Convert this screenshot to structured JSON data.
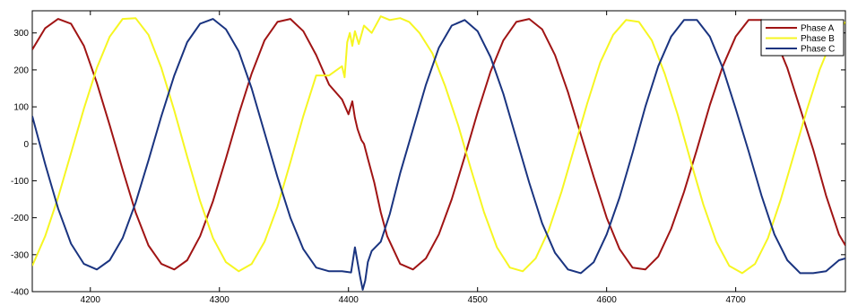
{
  "chart_data": {
    "type": "line",
    "title": "",
    "xlabel": "",
    "ylabel": "",
    "xlim": [
      4155,
      4785
    ],
    "ylim": [
      -400,
      360
    ],
    "x_ticks": [
      4200,
      4300,
      4400,
      4500,
      4600,
      4700
    ],
    "y_ticks": [
      300,
      200,
      100,
      0,
      -100,
      -200,
      -300,
      -400
    ],
    "grid": false,
    "legend_position": "top-right",
    "series": [
      {
        "name": "Phase A",
        "color": "#a01414",
        "x": [
          4155,
          4165,
          4175,
          4185,
          4195,
          4205,
          4215,
          4225,
          4235,
          4245,
          4255,
          4265,
          4275,
          4285,
          4295,
          4305,
          4315,
          4325,
          4335,
          4345,
          4355,
          4365,
          4375,
          4385,
          4395,
          4400,
          4403,
          4405,
          4407,
          4410,
          4412,
          4415,
          4420,
          4425,
          4430,
          4440,
          4450,
          4460,
          4470,
          4480,
          4490,
          4500,
          4510,
          4520,
          4530,
          4540,
          4550,
          4560,
          4570,
          4580,
          4590,
          4600,
          4610,
          4620,
          4630,
          4640,
          4650,
          4660,
          4670,
          4680,
          4690,
          4700,
          4710,
          4720,
          4730,
          4740,
          4750,
          4760,
          4770,
          4780,
          4785
        ],
        "y": [
          255,
          313,
          338,
          325,
          265,
          165,
          50,
          -70,
          -185,
          -275,
          -325,
          -340,
          -315,
          -250,
          -155,
          -40,
          80,
          190,
          280,
          330,
          338,
          305,
          240,
          160,
          120,
          80,
          115,
          70,
          40,
          10,
          0,
          -40,
          -105,
          -185,
          -250,
          -325,
          -340,
          -310,
          -245,
          -150,
          -35,
          85,
          195,
          280,
          330,
          338,
          310,
          240,
          140,
          25,
          -90,
          -200,
          -285,
          -335,
          -340,
          -305,
          -230,
          -130,
          -15,
          105,
          210,
          290,
          335,
          335,
          290,
          205,
          95,
          -15,
          -140,
          -245,
          -275
        ]
      },
      {
        "name": "Phase B",
        "color": "#f6f622",
        "x": [
          4155,
          4165,
          4175,
          4185,
          4195,
          4205,
          4215,
          4225,
          4235,
          4245,
          4255,
          4265,
          4275,
          4285,
          4295,
          4305,
          4315,
          4325,
          4335,
          4345,
          4355,
          4365,
          4375,
          4385,
          4395,
          4397,
          4399,
          4401,
          4403,
          4405,
          4408,
          4412,
          4418,
          4425,
          4432,
          4440,
          4447,
          4455,
          4465,
          4475,
          4485,
          4495,
          4505,
          4515,
          4525,
          4535,
          4545,
          4555,
          4565,
          4575,
          4585,
          4595,
          4605,
          4615,
          4625,
          4635,
          4645,
          4655,
          4665,
          4675,
          4685,
          4695,
          4705,
          4715,
          4725,
          4735,
          4745,
          4755,
          4765,
          4775,
          4785
        ],
        "y": [
          -330,
          -250,
          -145,
          -25,
          95,
          205,
          290,
          338,
          340,
          295,
          205,
          90,
          -35,
          -155,
          -255,
          -320,
          -345,
          -325,
          -265,
          -170,
          -50,
          75,
          185,
          185,
          210,
          180,
          275,
          300,
          265,
          305,
          270,
          320,
          300,
          345,
          335,
          340,
          330,
          300,
          245,
          155,
          50,
          -70,
          -185,
          -280,
          -335,
          -345,
          -310,
          -235,
          -130,
          -10,
          110,
          220,
          295,
          335,
          330,
          280,
          190,
          80,
          -45,
          -165,
          -265,
          -330,
          -350,
          -325,
          -255,
          -150,
          -30,
          90,
          200,
          285,
          330
        ]
      },
      {
        "name": "Phase C",
        "color": "#1a3480",
        "x": [
          4155,
          4165,
          4175,
          4185,
          4195,
          4205,
          4215,
          4225,
          4235,
          4245,
          4255,
          4265,
          4275,
          4285,
          4295,
          4305,
          4315,
          4325,
          4335,
          4345,
          4355,
          4365,
          4375,
          4385,
          4395,
          4402,
          4405,
          4407,
          4409,
          4411,
          4413,
          4415,
          4418,
          4425,
          4432,
          4440,
          4450,
          4460,
          4470,
          4480,
          4490,
          4500,
          4510,
          4520,
          4530,
          4540,
          4550,
          4560,
          4570,
          4580,
          4590,
          4600,
          4610,
          4620,
          4630,
          4640,
          4650,
          4660,
          4670,
          4680,
          4690,
          4700,
          4710,
          4720,
          4730,
          4740,
          4750,
          4760,
          4770,
          4780,
          4785
        ],
        "y": [
          75,
          -55,
          -175,
          -270,
          -325,
          -340,
          -315,
          -255,
          -160,
          -45,
          75,
          185,
          275,
          325,
          338,
          310,
          250,
          150,
          30,
          -90,
          -200,
          -285,
          -335,
          -345,
          -345,
          -348,
          -280,
          -320,
          -360,
          -395,
          -370,
          -320,
          -290,
          -265,
          -190,
          -80,
          40,
          160,
          260,
          320,
          335,
          305,
          235,
          135,
          15,
          -105,
          -215,
          -295,
          -340,
          -350,
          -320,
          -245,
          -145,
          -25,
          100,
          210,
          290,
          335,
          335,
          290,
          205,
          95,
          -20,
          -140,
          -245,
          -315,
          -350,
          -350,
          -345,
          -315,
          -310
        ]
      }
    ]
  }
}
